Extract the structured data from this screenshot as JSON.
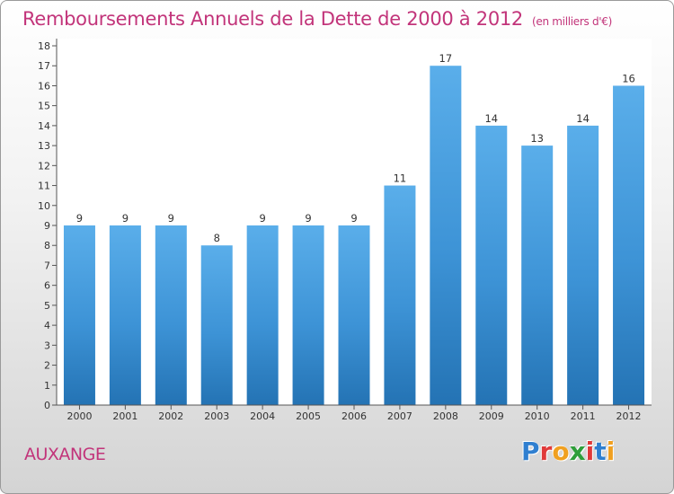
{
  "chart_data": {
    "type": "bar",
    "title": "Remboursements Annuels de la Dette de 2000 à 2012",
    "unit": "(en milliers d'€)",
    "categories": [
      "2000",
      "2001",
      "2002",
      "2003",
      "2004",
      "2005",
      "2006",
      "2007",
      "2008",
      "2009",
      "2010",
      "2011",
      "2012"
    ],
    "values": [
      9,
      9,
      9,
      8,
      9,
      9,
      9,
      11,
      17,
      14,
      13,
      14,
      16
    ],
    "ylim": [
      0,
      18
    ],
    "yticks": [
      0,
      1,
      2,
      3,
      4,
      5,
      6,
      7,
      8,
      9,
      10,
      11,
      12,
      13,
      14,
      15,
      16,
      17,
      18
    ],
    "xlabel": "",
    "ylabel": "",
    "grid": false,
    "bar_color": "#4fa3e3"
  },
  "footer": {
    "place": "AUXANGE"
  },
  "logo": {
    "letters": [
      "P",
      "r",
      "o",
      "x",
      "i",
      "t",
      "i"
    ],
    "colors": [
      "#2f7fd0",
      "#e03a3a",
      "#f0a020",
      "#2f9e3a",
      "#e03a3a",
      "#2f7fd0",
      "#f0a020"
    ]
  }
}
